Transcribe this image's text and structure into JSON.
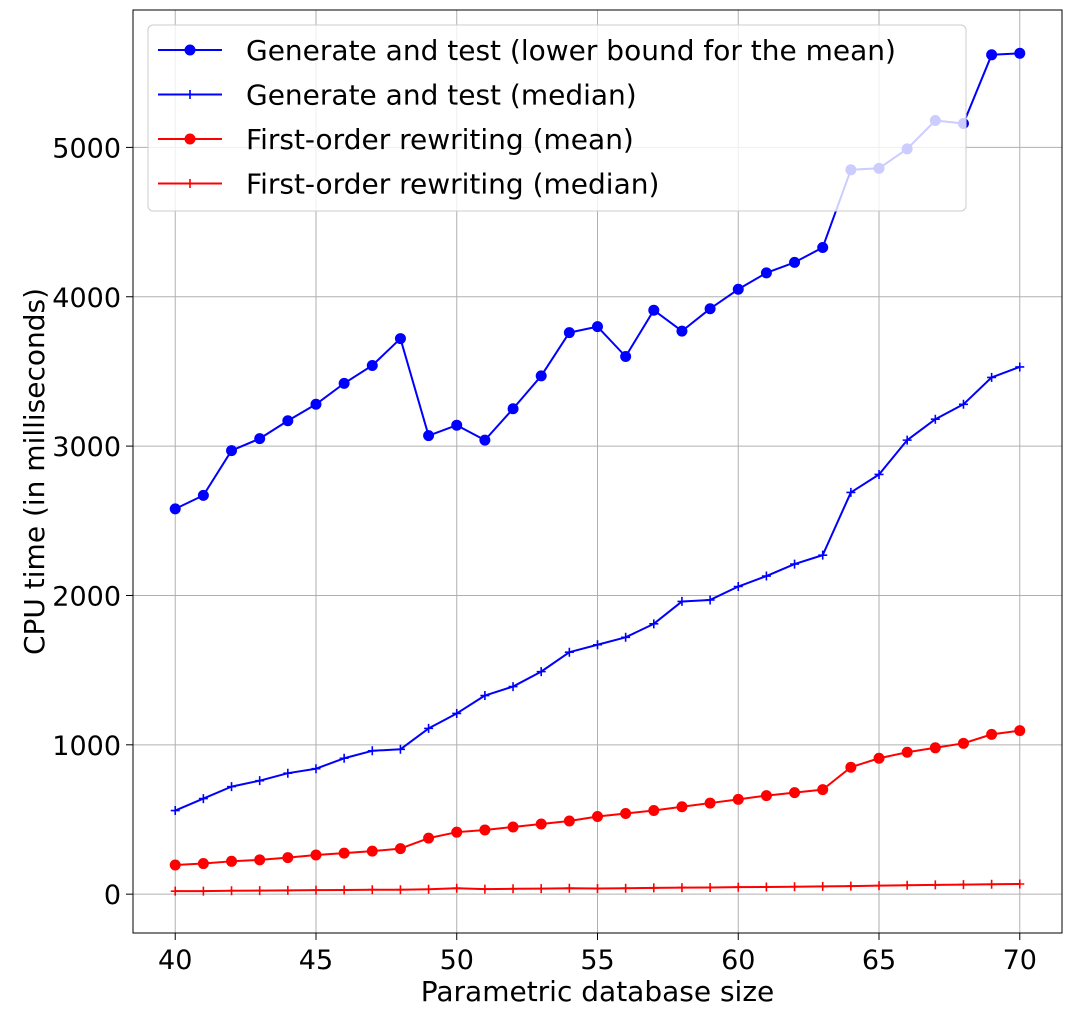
{
  "chart_data": {
    "type": "line",
    "xlabel": "Parametric database size",
    "ylabel": "CPU time (in milliseconds)",
    "xlim": [
      38.5,
      71.5
    ],
    "ylim": [
      -260,
      5920
    ],
    "xticks": [
      40,
      45,
      50,
      55,
      60,
      65,
      70
    ],
    "yticks": [
      0,
      1000,
      2000,
      3000,
      4000,
      5000
    ],
    "grid": true,
    "legend_position": "top-left",
    "x": [
      40,
      41,
      42,
      43,
      44,
      45,
      46,
      47,
      48,
      49,
      50,
      51,
      52,
      53,
      54,
      55,
      56,
      57,
      58,
      59,
      60,
      61,
      62,
      63,
      64,
      65,
      66,
      67,
      68,
      69,
      70
    ],
    "series": [
      {
        "name": "Generate and test (lower bound for the mean)",
        "color": "#0000ff",
        "marker": "circle",
        "values": [
          2580,
          2670,
          2970,
          3050,
          3170,
          3280,
          3420,
          3540,
          3720,
          3070,
          3140,
          3040,
          3250,
          3470,
          3760,
          3800,
          3600,
          3910,
          3770,
          3920,
          4050,
          4160,
          4230,
          4330,
          4850,
          4860,
          4990,
          5180,
          5160,
          5620,
          5630
        ]
      },
      {
        "name": "Generate and test (median)",
        "color": "#0000ff",
        "marker": "plus",
        "values": [
          560,
          640,
          720,
          760,
          810,
          840,
          910,
          960,
          970,
          1110,
          1210,
          1330,
          1390,
          1490,
          1620,
          1670,
          1720,
          1810,
          1960,
          1970,
          2060,
          2130,
          2210,
          2270,
          2690,
          2810,
          3040,
          3180,
          3280,
          3460,
          3530
        ]
      },
      {
        "name": "First-order rewriting (mean)",
        "color": "#ff0000",
        "marker": "circle",
        "values": [
          195,
          205,
          220,
          230,
          245,
          262,
          275,
          288,
          305,
          375,
          415,
          430,
          450,
          470,
          490,
          520,
          540,
          560,
          585,
          610,
          635,
          660,
          680,
          700,
          850,
          910,
          950,
          980,
          1010,
          1070,
          1095
        ]
      },
      {
        "name": "First-order rewriting (median)",
        "color": "#ff0000",
        "marker": "plus",
        "values": [
          20,
          20,
          23,
          24,
          25,
          27,
          28,
          30,
          30,
          33,
          40,
          34,
          36,
          37,
          40,
          38,
          40,
          42,
          44,
          45,
          47,
          48,
          50,
          52,
          54,
          57,
          60,
          62,
          64,
          66,
          68
        ]
      }
    ]
  }
}
